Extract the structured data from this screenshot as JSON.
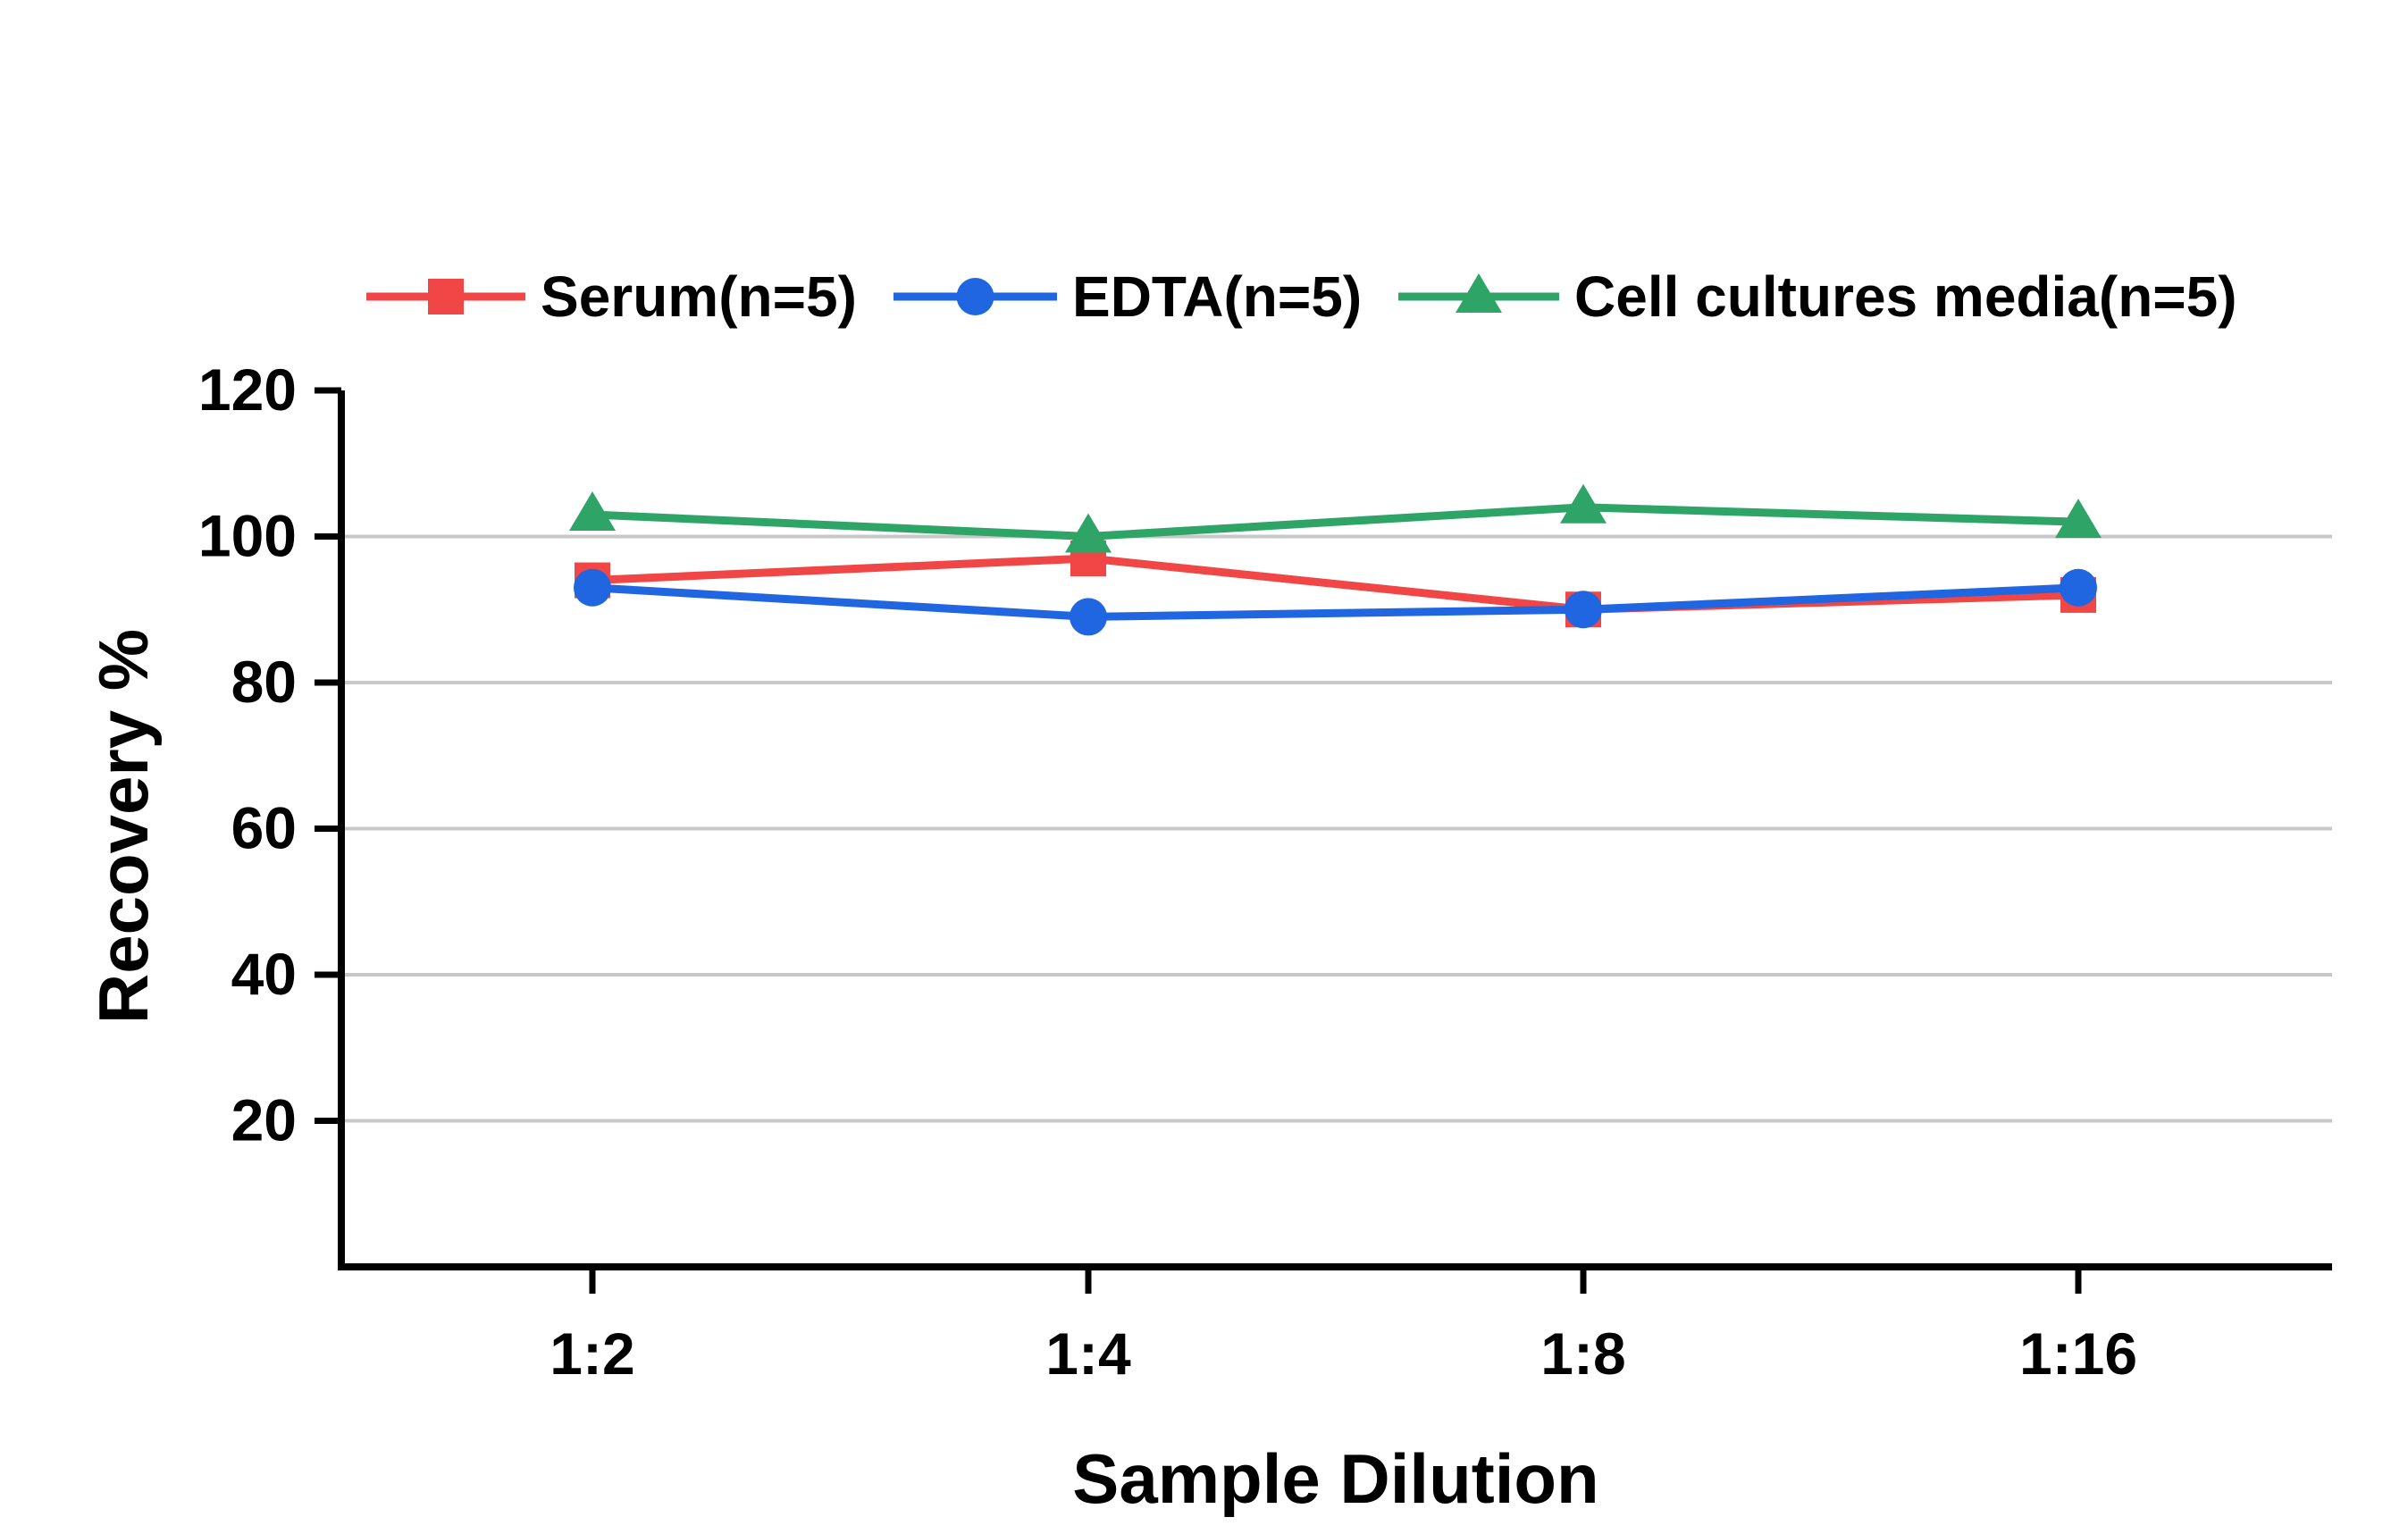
{
  "chart_data": {
    "type": "line",
    "categories": [
      "1:2",
      "1:4",
      "1:8",
      "1:16"
    ],
    "xlabel": "Sample Dilution",
    "ylabel": "Recovery %",
    "ylim": [
      0,
      120
    ],
    "yticks": [
      "20",
      "40",
      "60",
      "80",
      "100",
      "120"
    ],
    "grid": "horizontal",
    "legend_position": "top",
    "series": [
      {
        "name": "Serum(n=5)",
        "values": [
          94,
          97,
          90,
          92
        ],
        "color": "#f04646",
        "marker": "square"
      },
      {
        "name": "EDTA(n=5)",
        "values": [
          93,
          89,
          90,
          93
        ],
        "color": "#1f66e0",
        "marker": "circle"
      },
      {
        "name": "Cell cultures media(n=5)",
        "values": [
          103,
          100,
          104,
          102
        ],
        "color": "#2ea567",
        "marker": "triangle"
      }
    ]
  }
}
